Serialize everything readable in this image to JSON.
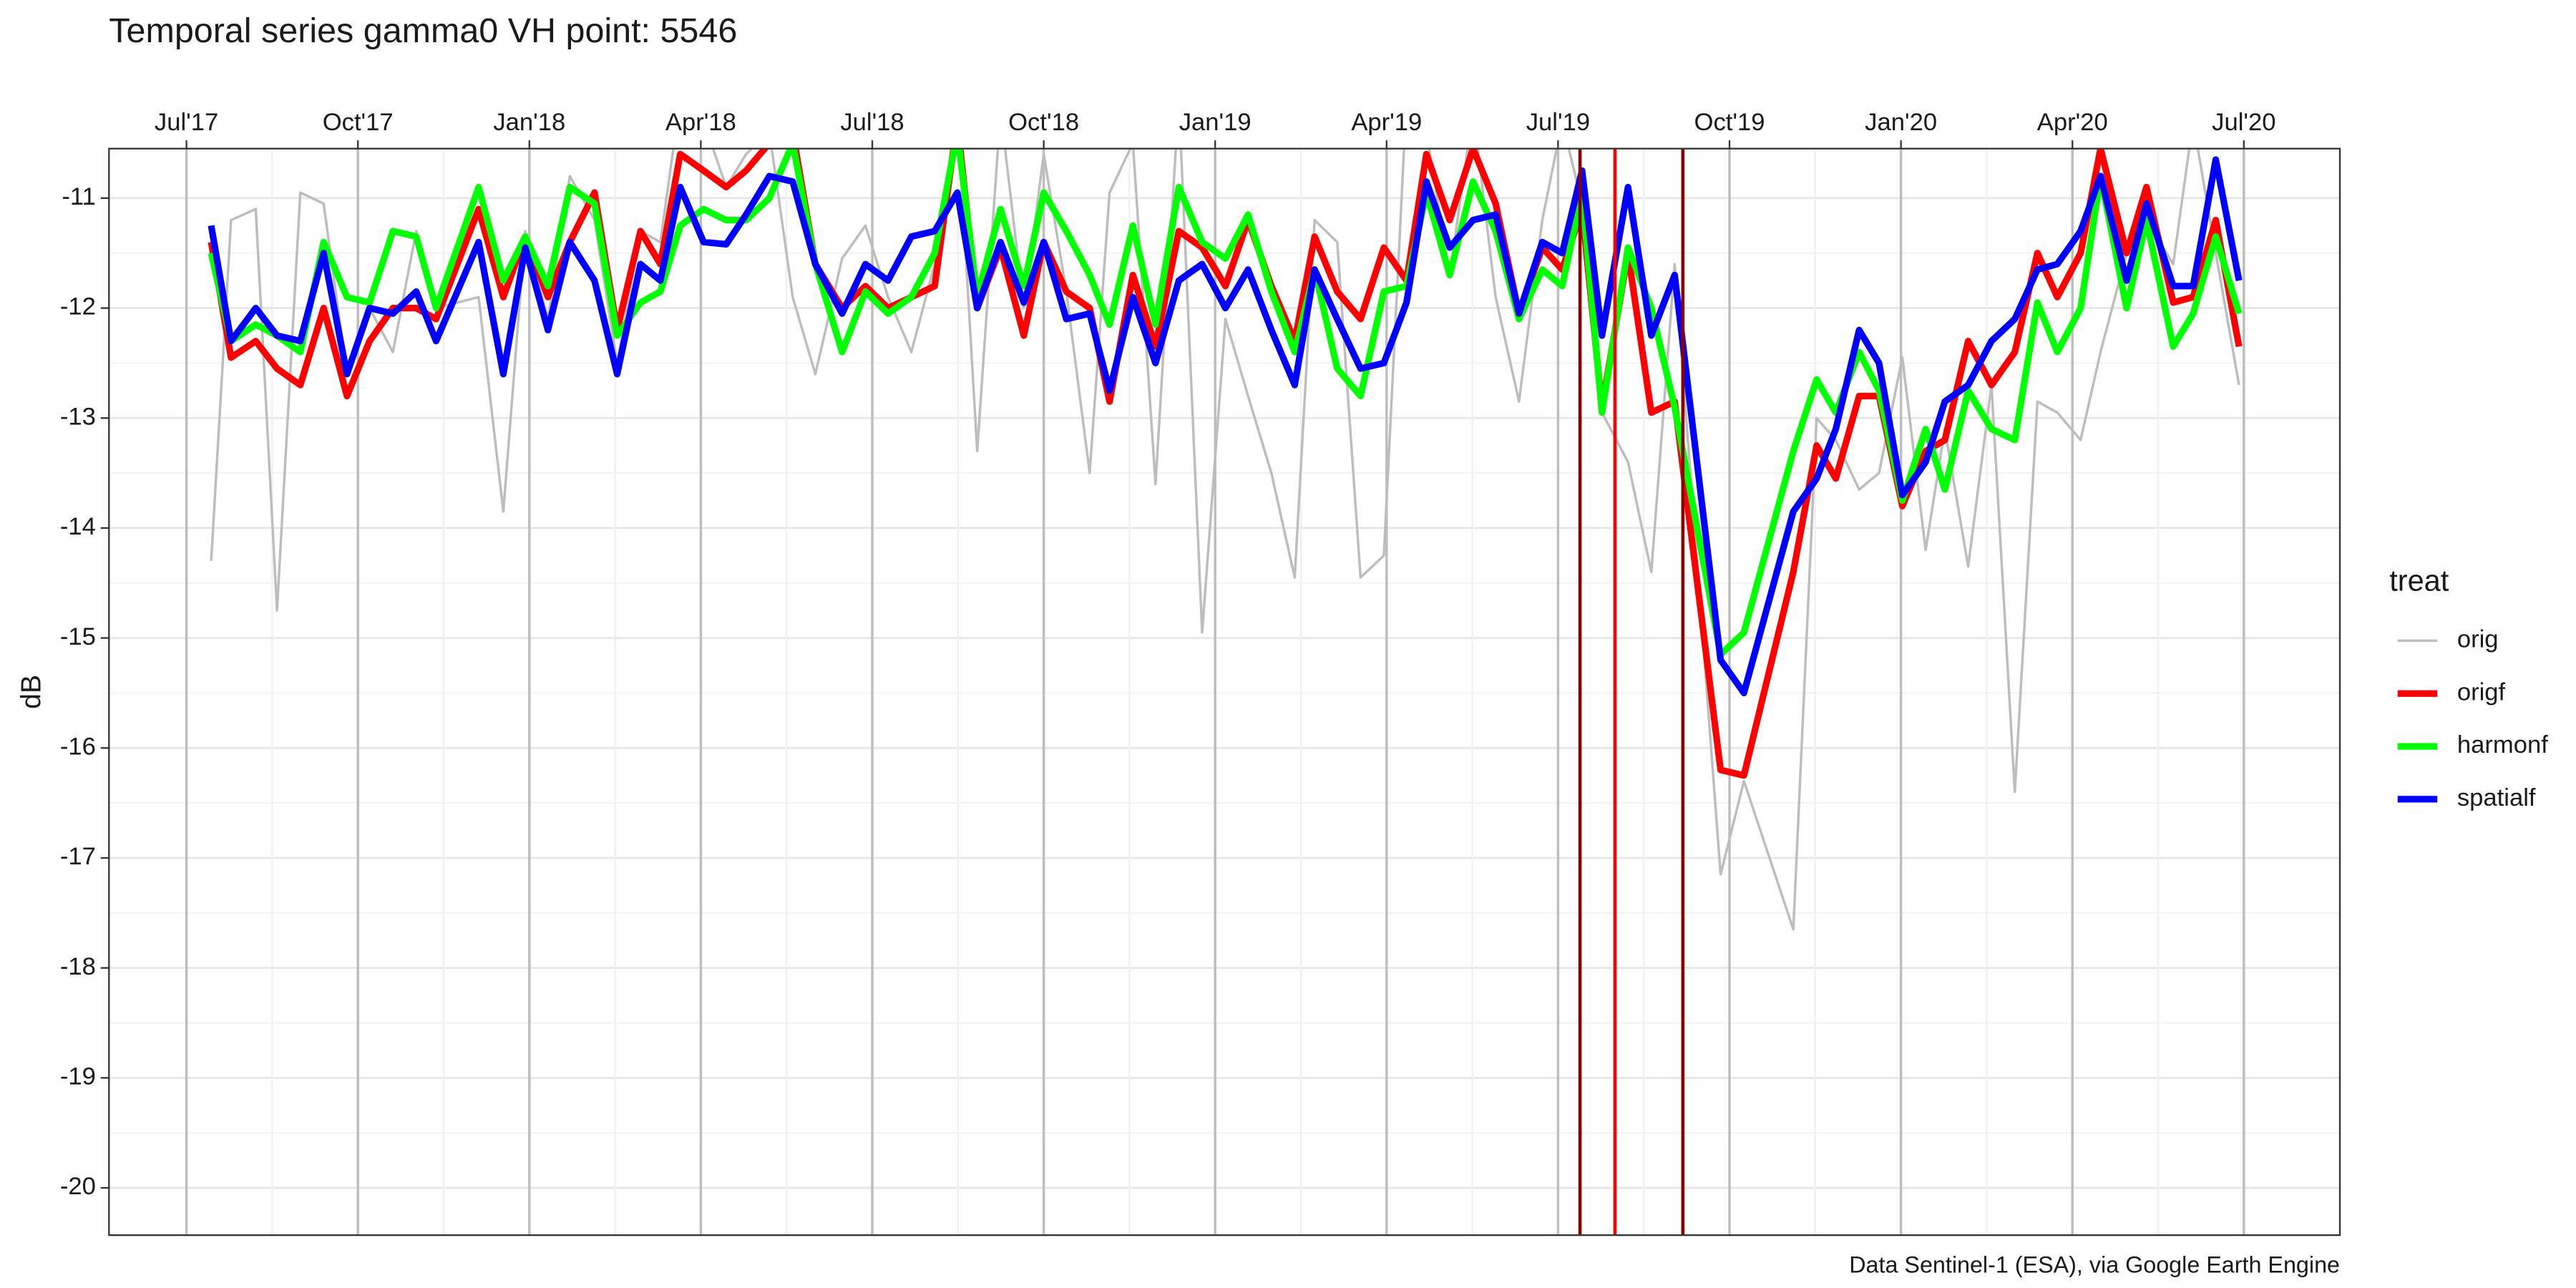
{
  "chart_data": {
    "type": "line",
    "title": "Temporal series gamma0 VH point: 5546",
    "y_label": "dB",
    "legend_title": "treat",
    "caption": "Data Sentinel-1 (ESA), via Google Earth Engine",
    "legend": "right",
    "grid": true,
    "x_axis_position": "top",
    "x": [
      2017.536,
      2017.565,
      2017.601,
      2017.632,
      2017.666,
      2017.7,
      2017.734,
      2017.767,
      2017.801,
      2017.835,
      2017.864,
      2017.926,
      2017.962,
      2017.994,
      2018.027,
      2018.059,
      2018.095,
      2018.128,
      2018.162,
      2018.191,
      2018.22,
      2018.254,
      2018.287,
      2018.316,
      2018.35,
      2018.384,
      2018.417,
      2018.456,
      2018.49,
      2018.523,
      2018.557,
      2018.591,
      2018.624,
      2018.653,
      2018.687,
      2018.721,
      2018.75,
      2018.783,
      2018.817,
      2018.846,
      2018.88,
      2018.913,
      2018.947,
      2018.981,
      2019.015,
      2019.048,
      2019.082,
      2019.116,
      2019.145,
      2019.178,
      2019.212,
      2019.246,
      2019.279,
      2019.308,
      2019.342,
      2019.376,
      2019.409,
      2019.443,
      2019.477,
      2019.506,
      2019.535,
      2019.564,
      2019.602,
      2019.636,
      2019.67,
      2019.737,
      2019.771,
      2019.843,
      2019.877,
      2019.905,
      2019.939,
      2019.968,
      2020.002,
      2020.036,
      2020.064,
      2020.098,
      2020.132,
      2020.166,
      2020.199,
      2020.228,
      2020.262,
      2020.291,
      2020.329,
      2020.358,
      2020.397,
      2020.426,
      2020.459,
      2020.493
    ],
    "series": [
      {
        "name": "orig",
        "color": "#bdbdbd",
        "width": 1.5,
        "values": [
          -14.3,
          -11.2,
          -11.1,
          -14.75,
          -10.95,
          -11.05,
          -12.6,
          -12.0,
          -12.4,
          -11.3,
          -12.0,
          -11.9,
          -13.85,
          -11.3,
          -12.1,
          -10.8,
          -11.2,
          -12.5,
          -11.3,
          -11.4,
          -10.1,
          -10.3,
          -10.9,
          -10.6,
          -10.4,
          -11.9,
          -12.6,
          -11.55,
          -11.25,
          -11.9,
          -12.4,
          -11.6,
          -10.2,
          -13.3,
          -10.2,
          -12.0,
          -10.6,
          -11.85,
          -13.5,
          -10.95,
          -10.5,
          -13.6,
          -10.1,
          -14.95,
          -12.1,
          -12.8,
          -13.5,
          -14.45,
          -11.2,
          -11.4,
          -14.45,
          -14.25,
          -10.1,
          -10.4,
          -11.7,
          -10.2,
          -11.9,
          -12.85,
          -11.2,
          -10.3,
          -11.05,
          -12.95,
          -13.4,
          -14.4,
          -11.6,
          -17.15,
          -16.3,
          -17.65,
          -13.0,
          -13.2,
          -13.65,
          -13.5,
          -12.45,
          -14.2,
          -13.1,
          -14.35,
          -12.7,
          -16.4,
          -12.85,
          -12.95,
          -13.2,
          -12.4,
          -11.5,
          -11.2,
          -11.6,
          -10.3,
          -11.5,
          -12.7
        ]
      },
      {
        "name": "origf",
        "color": "#ff0000",
        "width": 4,
        "values": [
          -11.4,
          -12.45,
          -12.3,
          -12.55,
          -12.7,
          -12.0,
          -12.8,
          -12.3,
          -12.0,
          -12.0,
          -12.1,
          -11.1,
          -11.9,
          -11.35,
          -11.9,
          -11.4,
          -10.95,
          -12.2,
          -11.3,
          -11.6,
          -10.6,
          -10.75,
          -10.9,
          -10.75,
          -10.5,
          -10.4,
          -11.6,
          -12.0,
          -11.8,
          -12.0,
          -11.9,
          -11.8,
          -10.3,
          -12.0,
          -11.45,
          -12.25,
          -11.4,
          -11.85,
          -12.0,
          -12.85,
          -11.7,
          -12.35,
          -11.3,
          -11.45,
          -11.8,
          -11.2,
          -11.8,
          -12.3,
          -11.35,
          -11.85,
          -12.1,
          -11.45,
          -11.75,
          -10.6,
          -11.2,
          -10.55,
          -11.05,
          -12.05,
          -11.45,
          -11.65,
          -11.1,
          -12.9,
          -11.5,
          -12.95,
          -12.85,
          -16.2,
          -16.25,
          -14.4,
          -13.25,
          -13.55,
          -12.8,
          -12.8,
          -13.8,
          -13.3,
          -13.2,
          -12.3,
          -12.7,
          -12.4,
          -11.5,
          -11.9,
          -11.5,
          -10.55,
          -11.5,
          -10.9,
          -11.95,
          -11.9,
          -11.2,
          -12.35
        ]
      },
      {
        "name": "harmonf",
        "color": "#00ff00",
        "width": 4,
        "values": [
          -11.5,
          -12.3,
          -12.15,
          -12.25,
          -12.4,
          -11.4,
          -11.9,
          -11.95,
          -11.3,
          -11.35,
          -12.0,
          -10.9,
          -11.75,
          -11.35,
          -11.8,
          -10.9,
          -11.05,
          -12.25,
          -11.95,
          -11.85,
          -11.25,
          -11.1,
          -11.2,
          -11.2,
          -11.0,
          -10.5,
          -11.6,
          -12.4,
          -11.85,
          -12.05,
          -11.9,
          -11.5,
          -10.4,
          -11.9,
          -11.1,
          -11.8,
          -10.95,
          -11.3,
          -11.7,
          -12.15,
          -11.25,
          -12.15,
          -10.9,
          -11.4,
          -11.55,
          -11.15,
          -11.85,
          -12.4,
          -11.65,
          -12.55,
          -12.8,
          -11.85,
          -11.8,
          -10.95,
          -11.7,
          -10.85,
          -11.3,
          -12.1,
          -11.65,
          -11.8,
          -10.95,
          -12.95,
          -11.45,
          -12.0,
          -12.9,
          -15.15,
          -14.95,
          -13.3,
          -12.65,
          -12.95,
          -12.4,
          -12.75,
          -13.75,
          -13.1,
          -13.65,
          -12.75,
          -13.1,
          -13.2,
          -11.95,
          -12.4,
          -12.0,
          -10.8,
          -12.0,
          -11.2,
          -12.35,
          -12.05,
          -11.35,
          -12.05
        ]
      },
      {
        "name": "spatialf",
        "color": "#0000ff",
        "width": 4,
        "values": [
          -11.25,
          -12.3,
          -12.0,
          -12.25,
          -12.3,
          -11.5,
          -12.6,
          -12.0,
          -12.05,
          -11.85,
          -12.3,
          -11.4,
          -12.6,
          -11.45,
          -12.2,
          -11.4,
          -11.75,
          -12.6,
          -11.6,
          -11.75,
          -10.9,
          -11.4,
          -11.42,
          -11.15,
          -10.8,
          -10.85,
          -11.6,
          -12.05,
          -11.6,
          -11.75,
          -11.35,
          -11.3,
          -10.95,
          -12.0,
          -11.4,
          -11.95,
          -11.4,
          -12.1,
          -12.05,
          -12.75,
          -11.9,
          -12.5,
          -11.75,
          -11.6,
          -12.0,
          -11.65,
          -12.2,
          -12.7,
          -11.65,
          -12.1,
          -12.55,
          -12.5,
          -11.95,
          -10.85,
          -11.45,
          -11.2,
          -11.15,
          -12.05,
          -11.4,
          -11.5,
          -10.75,
          -12.25,
          -10.9,
          -12.25,
          -11.7,
          -15.2,
          -15.5,
          -13.85,
          -13.55,
          -13.1,
          -12.2,
          -12.5,
          -13.7,
          -13.4,
          -12.85,
          -12.7,
          -12.3,
          -12.1,
          -11.65,
          -11.6,
          -11.3,
          -10.8,
          -11.75,
          -11.05,
          -11.8,
          -11.8,
          -10.65,
          -11.75
        ]
      }
    ],
    "vlines": [
      {
        "x": 2019.532,
        "color": "#8b0000"
      },
      {
        "x": 2019.583,
        "color": "#ff0000"
      },
      {
        "x": 2019.682,
        "color": "#8b0000"
      }
    ],
    "xlim": [
      2017.387,
      2020.64
    ],
    "xticks": [
      {
        "value": 2017.5,
        "label": "Jul'17"
      },
      {
        "value": 2017.75,
        "label": "Oct'17"
      },
      {
        "value": 2018.0,
        "label": "Jan'18"
      },
      {
        "value": 2018.25,
        "label": "Apr'18"
      },
      {
        "value": 2018.5,
        "label": "Jul'18"
      },
      {
        "value": 2018.75,
        "label": "Oct'18"
      },
      {
        "value": 2019.0,
        "label": "Jan'19"
      },
      {
        "value": 2019.25,
        "label": "Apr'19"
      },
      {
        "value": 2019.5,
        "label": "Jul'19"
      },
      {
        "value": 2019.75,
        "label": "Oct'19"
      },
      {
        "value": 2020.0,
        "label": "Jan'20"
      },
      {
        "value": 2020.25,
        "label": "Apr'20"
      },
      {
        "value": 2020.5,
        "label": "Jul'20"
      }
    ],
    "ylim": [
      -20.43,
      -10.55
    ],
    "yticks": [
      -20,
      -19,
      -18,
      -17,
      -16,
      -15,
      -14,
      -13,
      -12,
      -11
    ]
  }
}
